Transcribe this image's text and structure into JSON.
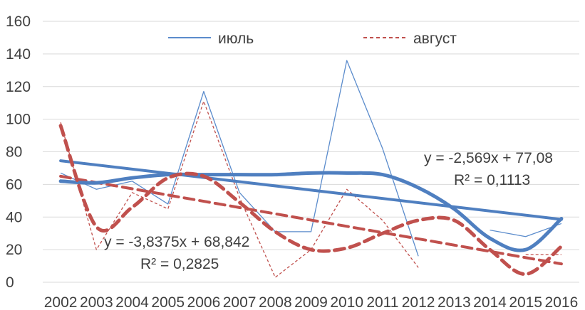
{
  "chart_data": {
    "type": "line",
    "x": [
      "2002",
      "2003",
      "2004",
      "2005",
      "2006",
      "2007",
      "2008",
      "2009",
      "2010",
      "2011",
      "2012",
      "2013",
      "2014",
      "2015",
      "2016"
    ],
    "ylim": [
      0,
      160
    ],
    "yticks": [
      0,
      20,
      40,
      60,
      80,
      100,
      120,
      140,
      160
    ],
    "grid": true,
    "legend_position": "top",
    "series": [
      {
        "name": "июль",
        "color": "#5b8ccc",
        "style": "solid-thin",
        "values": [
          67,
          57,
          62,
          48,
          117,
          55,
          31,
          31,
          136,
          82,
          16,
          null,
          32,
          28,
          36
        ]
      },
      {
        "name": "август",
        "color": "#c0504d",
        "style": "dashed-thin",
        "values": [
          98,
          20,
          55,
          45,
          111,
          52,
          3,
          20,
          57,
          38,
          9,
          null,
          null,
          17,
          17
        ]
      }
    ],
    "trendlines": [
      {
        "series": "июль",
        "kind": "linear",
        "color": "#4f7fc0",
        "equation": "y = -2,569x + 77,08",
        "r2": "R² = 0,1113",
        "slope": -2.569,
        "intercept": 77.08
      },
      {
        "series": "август",
        "kind": "linear",
        "color": "#c0504d",
        "equation": "y = -3,8375x + 68,842",
        "r2": "R² = 0,2825",
        "slope": -3.8375,
        "intercept": 68.842
      },
      {
        "series": "июль",
        "kind": "polynomial",
        "color": "#4f7fc0",
        "values": [
          62,
          61,
          64,
          66,
          66,
          66,
          66,
          67,
          67,
          66,
          58,
          45,
          27,
          20,
          39
        ]
      },
      {
        "series": "август",
        "kind": "polynomial",
        "color": "#c0504d",
        "values": [
          96,
          34,
          46,
          64,
          65,
          49,
          31,
          20,
          21,
          30,
          38,
          38,
          20,
          5,
          22
        ]
      }
    ]
  }
}
